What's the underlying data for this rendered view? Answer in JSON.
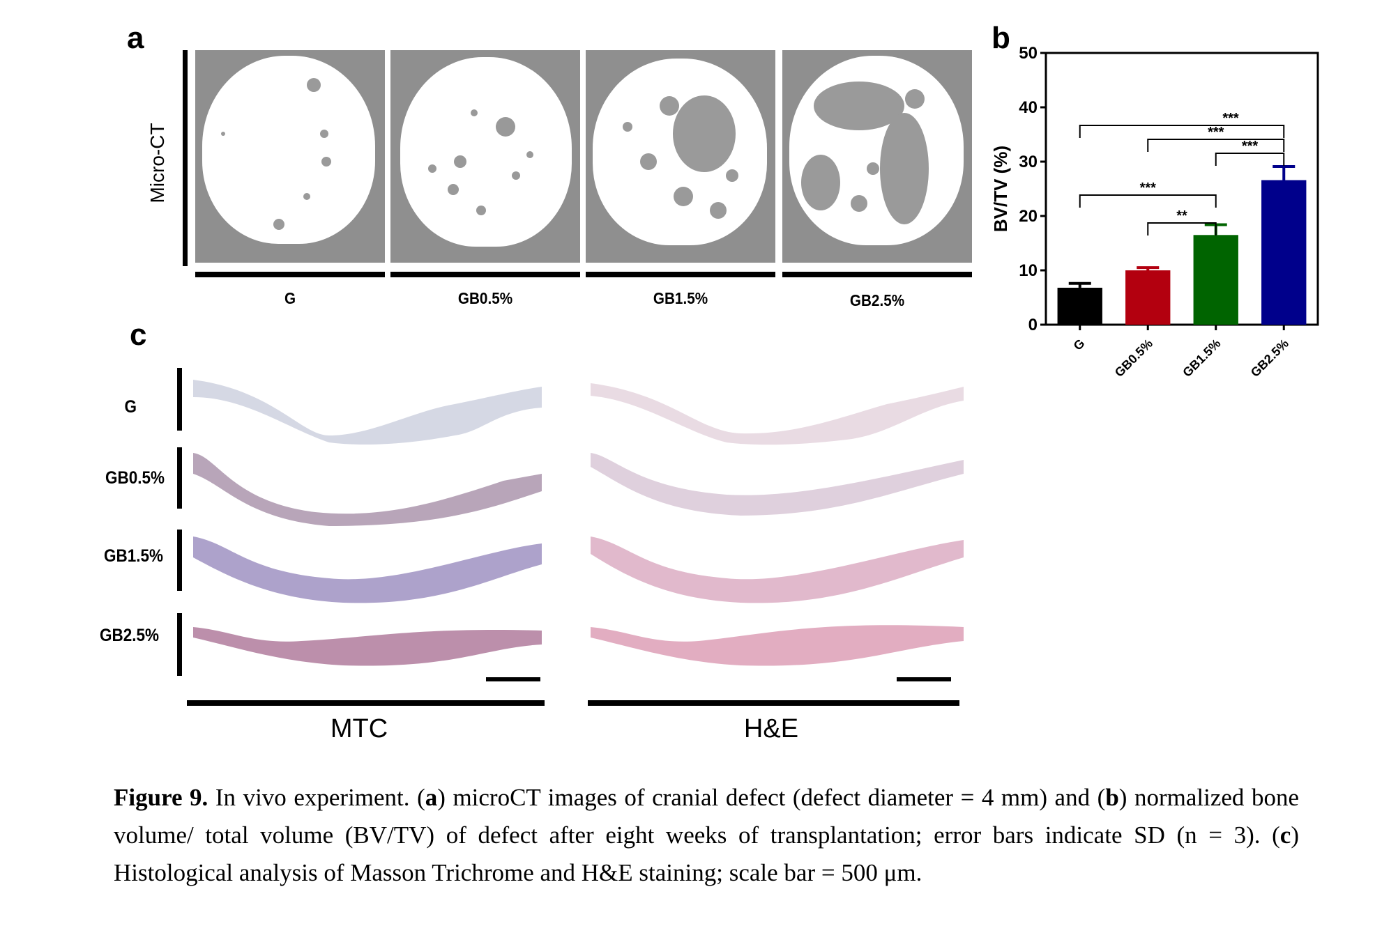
{
  "panel_a": {
    "letter": "a",
    "side_label": "Micro-CT",
    "tiles": [
      "G",
      "GB0.5%",
      "GB1.5%",
      "GB2.5%"
    ]
  },
  "panel_b": {
    "letter": "b"
  },
  "panel_c": {
    "letter": "c",
    "rows": [
      "G",
      "GB0.5%",
      "GB1.5%",
      "GB2.5%"
    ],
    "groups": [
      "MTC",
      "H&E"
    ]
  },
  "chart_data": {
    "type": "bar",
    "categories": [
      "G",
      "GB0.5%",
      "GB1.5%",
      "GB2.5%"
    ],
    "values": [
      6.8,
      10.0,
      16.5,
      26.6
    ],
    "errors": [
      0.8,
      0.5,
      1.9,
      2.5
    ],
    "colors": [
      "#000000",
      "#b3000f",
      "#006400",
      "#00008b"
    ],
    "ylabel": "BV/TV (%)",
    "xlabel": "",
    "ylim": [
      0,
      50
    ],
    "yticks": [
      0,
      10,
      20,
      30,
      40,
      50
    ],
    "significance": [
      {
        "from": "G",
        "to": "GB2.5%",
        "label": "***"
      },
      {
        "from": "GB0.5%",
        "to": "GB2.5%",
        "label": "***"
      },
      {
        "from": "GB1.5%",
        "to": "GB2.5%",
        "label": "***"
      },
      {
        "from": "G",
        "to": "GB1.5%",
        "label": "***"
      },
      {
        "from": "GB0.5%",
        "to": "GB1.5%",
        "label": "**"
      }
    ]
  },
  "caption": {
    "figure_label": "Figure 9.",
    "text_1": " In vivo experiment.  (",
    "a": "a",
    "text_2": ") microCT images of cranial defect (defect diameter = 4 mm) and (",
    "b": "b",
    "text_3": ") normalized bone volume/ total volume (BV/TV) of defect after eight weeks of transplantation; error bars indicate SD (n = 3).  (",
    "c": "c",
    "text_4": ") Histological analysis of Masson Trichrome and H&E staining; scale bar = 500 μm."
  }
}
